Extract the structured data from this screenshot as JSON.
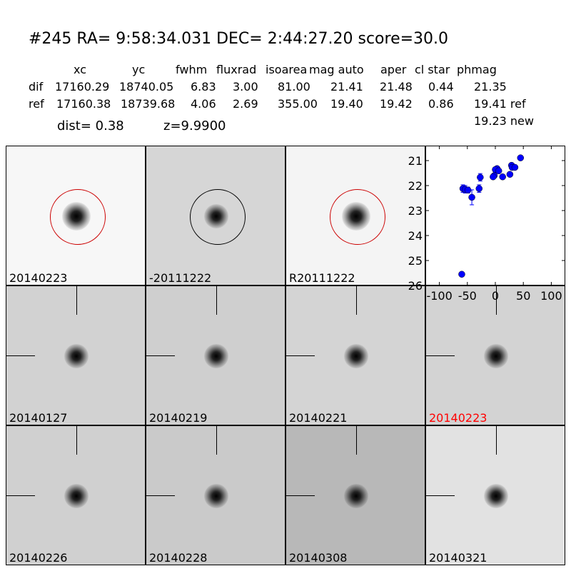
{
  "header": {
    "title": "#245   RA= 9:58:34.031 DEC= 2:44:27.20      score=30.0",
    "columns": [
      "xc",
      "yc",
      "fwhm",
      "fluxrad",
      "isoarea",
      "mag auto",
      "aper",
      "cl star",
      "phmag"
    ],
    "rows": [
      {
        "label": "dif",
        "values": [
          "17160.29",
          "18740.05",
          "6.83",
          "3.00",
          "81.00",
          "21.41",
          "21.48",
          "0.44",
          "21.35"
        ]
      },
      {
        "label": "ref",
        "values": [
          "17160.38",
          "18739.68",
          "4.06",
          "2.69",
          "355.00",
          "19.40",
          "19.42",
          "0.86",
          "19.41 ref"
        ]
      }
    ],
    "dist": "dist=  0.38",
    "z": "z=9.9900",
    "new_mag": "19.23 new"
  },
  "panels": [
    {
      "label": "20140223",
      "color": "#000000"
    },
    {
      "label": "-20111222",
      "color": "#000000"
    },
    {
      "label": "R20111222",
      "color": "#000000"
    },
    {
      "label": "20140127",
      "color": "#000000"
    },
    {
      "label": "20140219",
      "color": "#000000"
    },
    {
      "label": "20140221",
      "color": "#000000"
    },
    {
      "label": "20140223",
      "color": "#ff0000"
    },
    {
      "label": "20140226",
      "color": "#000000"
    },
    {
      "label": "20140228",
      "color": "#000000"
    },
    {
      "label": "20140308",
      "color": "#000000"
    },
    {
      "label": "20140321",
      "color": "#000000"
    }
  ],
  "chart_data": {
    "type": "scatter",
    "xlim": [
      -125,
      125
    ],
    "ylim": [
      26,
      20.4
    ],
    "y_inverted": true,
    "xticks": [
      "-100",
      "-50",
      "0",
      "50",
      "100"
    ],
    "yticks": [
      "21",
      "22",
      "23",
      "24",
      "25",
      "26"
    ],
    "marker_color": "#0000ff",
    "points": [
      {
        "x": 45,
        "y": 20.89,
        "err": 0.03
      },
      {
        "x": 29,
        "y": 21.19,
        "err": 0.03
      },
      {
        "x": 30,
        "y": 21.27,
        "err": 0.03
      },
      {
        "x": 35,
        "y": 21.27,
        "err": 0.03
      },
      {
        "x": 26,
        "y": 21.55,
        "err": 0.04
      },
      {
        "x": 3,
        "y": 21.32,
        "err": 0.04
      },
      {
        "x": 0,
        "y": 21.36,
        "err": 0.04
      },
      {
        "x": 6,
        "y": 21.41,
        "err": 0.04
      },
      {
        "x": -2,
        "y": 21.6,
        "err": 0.05
      },
      {
        "x": -4,
        "y": 21.65,
        "err": 0.05
      },
      {
        "x": 13,
        "y": 21.65,
        "err": 0.06
      },
      {
        "x": -27,
        "y": 21.67,
        "err": 0.15
      },
      {
        "x": -29,
        "y": 22.12,
        "err": 0.15
      },
      {
        "x": -58,
        "y": 22.12,
        "err": 0.15
      },
      {
        "x": -54,
        "y": 22.15,
        "err": 0.15
      },
      {
        "x": -49,
        "y": 22.18,
        "err": 0.12
      },
      {
        "x": -42,
        "y": 22.47,
        "err": 0.3
      },
      {
        "x": -60,
        "y": 25.55,
        "err": 0.05
      }
    ]
  }
}
